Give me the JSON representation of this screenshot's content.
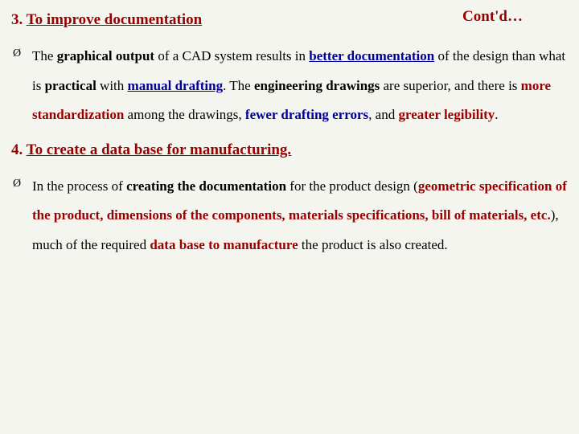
{
  "header": {
    "contd": "Cont'd…"
  },
  "section3": {
    "number": "3. ",
    "title": "To improve documentation",
    "p": {
      "t1": "The ",
      "t2": "graphical output",
      "t3": " of a CAD system results in ",
      "t4": "better documentation",
      "t5": " of the design than what is ",
      "t6": "practical",
      "t7": " with ",
      "t8": "manual drafting",
      "t9": ". The ",
      "t10": "engineering drawings",
      "t11": " are superior, and there is ",
      "t12": "more standardization",
      "t13": " among the drawings, ",
      "t14": "fewer drafting errors",
      "t15": ", and ",
      "t16": "greater legibility",
      "t17": "."
    }
  },
  "section4": {
    "number": "4. ",
    "title": "To create a data base for manufacturing.",
    "p": {
      "t1": "In the process of ",
      "t2": "creating the documentation",
      "t3": " for the product design (",
      "t4": "geometric specification of the product, dimensions of the components, materials specifications, bill of materials, etc.",
      "t5": "), much of the required ",
      "t6": "data base to manufacture",
      "t7": " the product is also created."
    }
  },
  "colors": {
    "maroon": "#990000",
    "navy": "#000099",
    "bg": "#f5f5f0",
    "text": "#000000"
  }
}
